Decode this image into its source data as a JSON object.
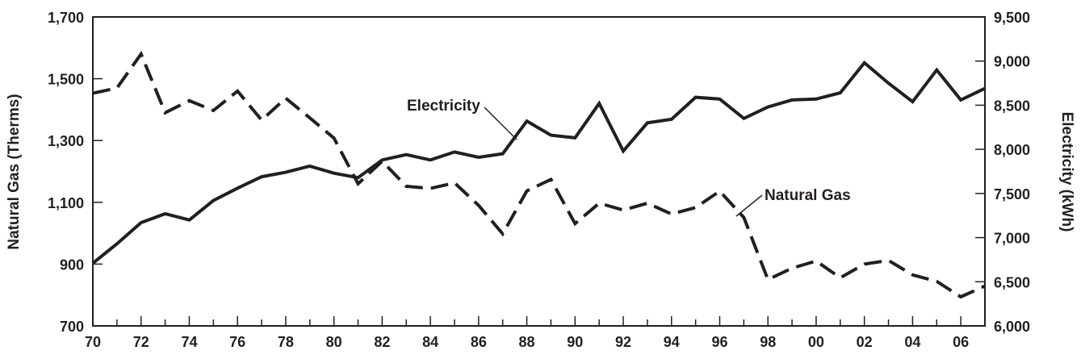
{
  "chart_data": {
    "type": "line",
    "title": "",
    "xlabel": "",
    "x_tick_labels": [
      "70",
      "72",
      "74",
      "76",
      "78",
      "80",
      "82",
      "84",
      "86",
      "88",
      "90",
      "92",
      "94",
      "96",
      "98",
      "00",
      "02",
      "04",
      "06"
    ],
    "y_left": {
      "label": "Natural Gas (Therms)",
      "ylim": [
        700,
        1700
      ],
      "ticks": [
        700,
        900,
        1100,
        1300,
        1500,
        1700
      ],
      "tick_labels": [
        "700",
        "900",
        "1,100",
        "1,300",
        "1,500",
        "1,700"
      ]
    },
    "y_right": {
      "label": "Electricity (kWh)",
      "ylim": [
        6000,
        9500
      ],
      "ticks": [
        6000,
        6500,
        7000,
        7500,
        8000,
        8500,
        9000,
        9500
      ],
      "tick_labels": [
        "6,000",
        "6,500",
        "7,000",
        "7,500",
        "8,000",
        "8,500",
        "9,000",
        "9,500"
      ]
    },
    "x": [
      1970,
      1971,
      1972,
      1973,
      1974,
      1975,
      1976,
      1977,
      1978,
      1979,
      1980,
      1981,
      1982,
      1983,
      1984,
      1985,
      1986,
      1987,
      1988,
      1989,
      1990,
      1991,
      1992,
      1993,
      1994,
      1995,
      1996,
      1997,
      1998,
      1999,
      2000,
      2001,
      2002,
      2003,
      2004,
      2005,
      2006,
      2007
    ],
    "series": [
      {
        "name": "Electricity",
        "axis": "right",
        "style": "solid",
        "values": [
          6710,
          6930,
          7170,
          7270,
          7200,
          7420,
          7560,
          7690,
          7740,
          7810,
          7730,
          7680,
          7880,
          7940,
          7880,
          7970,
          7910,
          7950,
          8320,
          8160,
          8130,
          8520,
          7980,
          8300,
          8340,
          8590,
          8570,
          8350,
          8480,
          8560,
          8570,
          8640,
          8980,
          8750,
          8540,
          8900,
          8560,
          8690
        ]
      },
      {
        "name": "Natural Gas",
        "axis": "left",
        "style": "dashed",
        "values": [
          1453,
          1470,
          1580,
          1390,
          1429,
          1397,
          1460,
          1366,
          1437,
          1373,
          1308,
          1160,
          1233,
          1152,
          1145,
          1163,
          1090,
          998,
          1137,
          1174,
          1031,
          1097,
          1075,
          1097,
          1062,
          1083,
          1136,
          1051,
          850,
          887,
          910,
          856,
          900,
          912,
          865,
          844,
          794,
          829
        ]
      }
    ],
    "annotations": [
      {
        "text": "Electricity",
        "series": "Electricity"
      },
      {
        "text": "Natural Gas",
        "series": "Natural Gas"
      }
    ],
    "grid": false,
    "legend": "none"
  }
}
